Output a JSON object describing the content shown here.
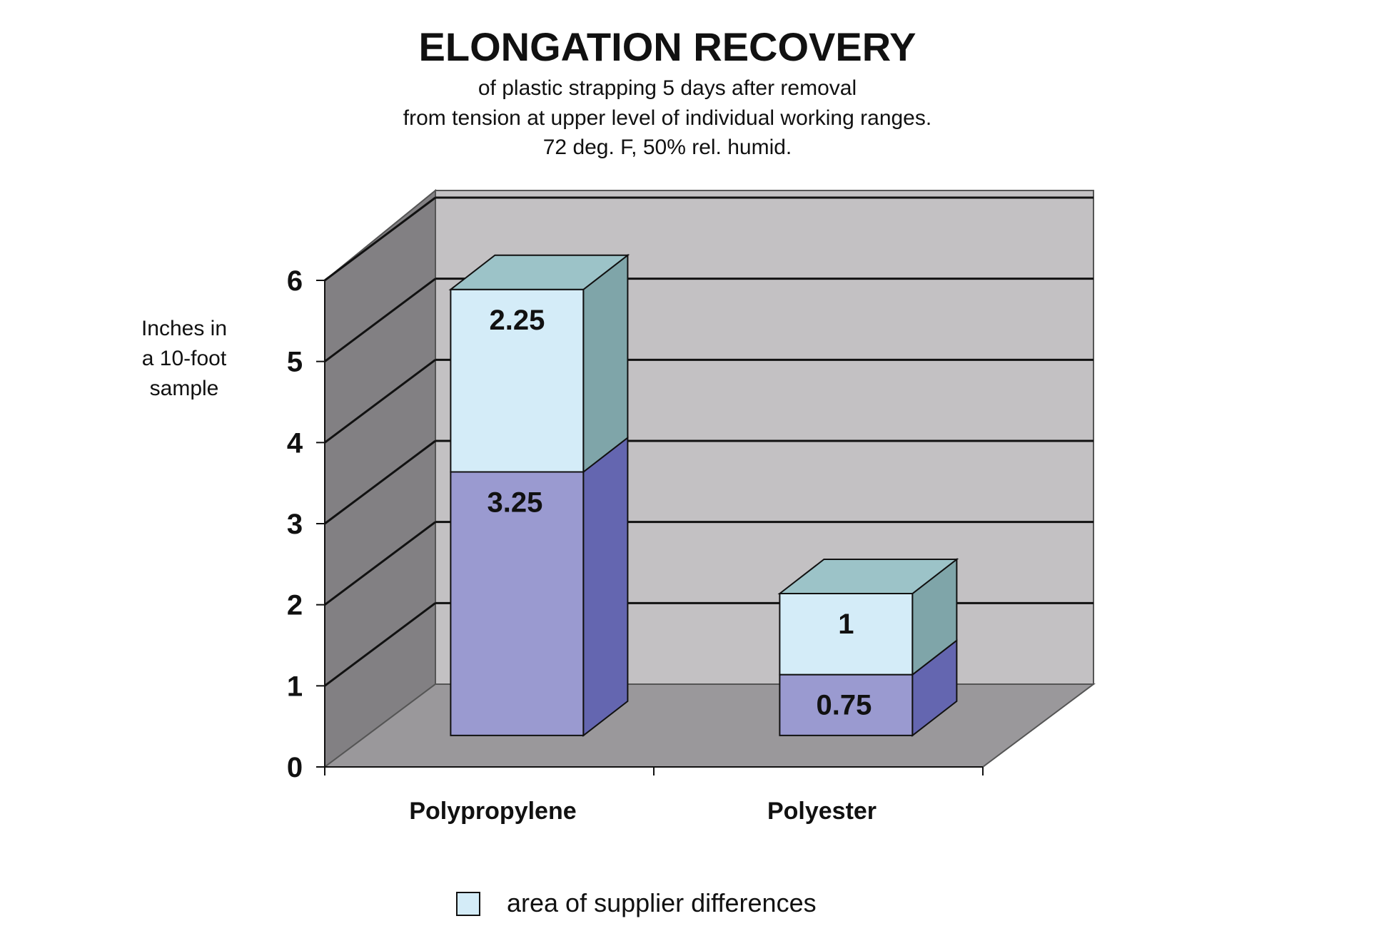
{
  "chart_data": {
    "type": "bar",
    "stacked": true,
    "three_d": true,
    "title": "ELONGATION RECOVERY",
    "subtitle_lines": [
      "of plastic strapping 5 days after removal",
      "from tension at upper level of individual working ranges.",
      "72 deg. F, 50% rel. humid."
    ],
    "ylabel_lines": [
      "Inches in",
      "a 10-foot",
      "sample"
    ],
    "xlabel": "",
    "ylim": [
      0,
      6
    ],
    "yticks": [
      0,
      1,
      2,
      3,
      4,
      5,
      6
    ],
    "categories": [
      "Polypropylene",
      "Polyester"
    ],
    "series": [
      {
        "name": "base",
        "values": [
          3.25,
          0.75
        ],
        "labels": [
          "3.25",
          "0.75"
        ]
      },
      {
        "name": "area of supplier differences",
        "values": [
          2.25,
          1
        ],
        "labels": [
          "2.25",
          "1"
        ]
      }
    ],
    "legend": {
      "position": "bottom",
      "entries": [
        "area of supplier differences"
      ]
    },
    "colors": {
      "base_front": "#9a9ad0",
      "base_side": "#6466b0",
      "top_front": "#d4ecf8",
      "top_side": "#7fa5a9",
      "top_cap": "#9cc3c8",
      "back_wall": "#c3c1c3",
      "left_wall": "#828083",
      "floor": "#9a989b"
    }
  }
}
